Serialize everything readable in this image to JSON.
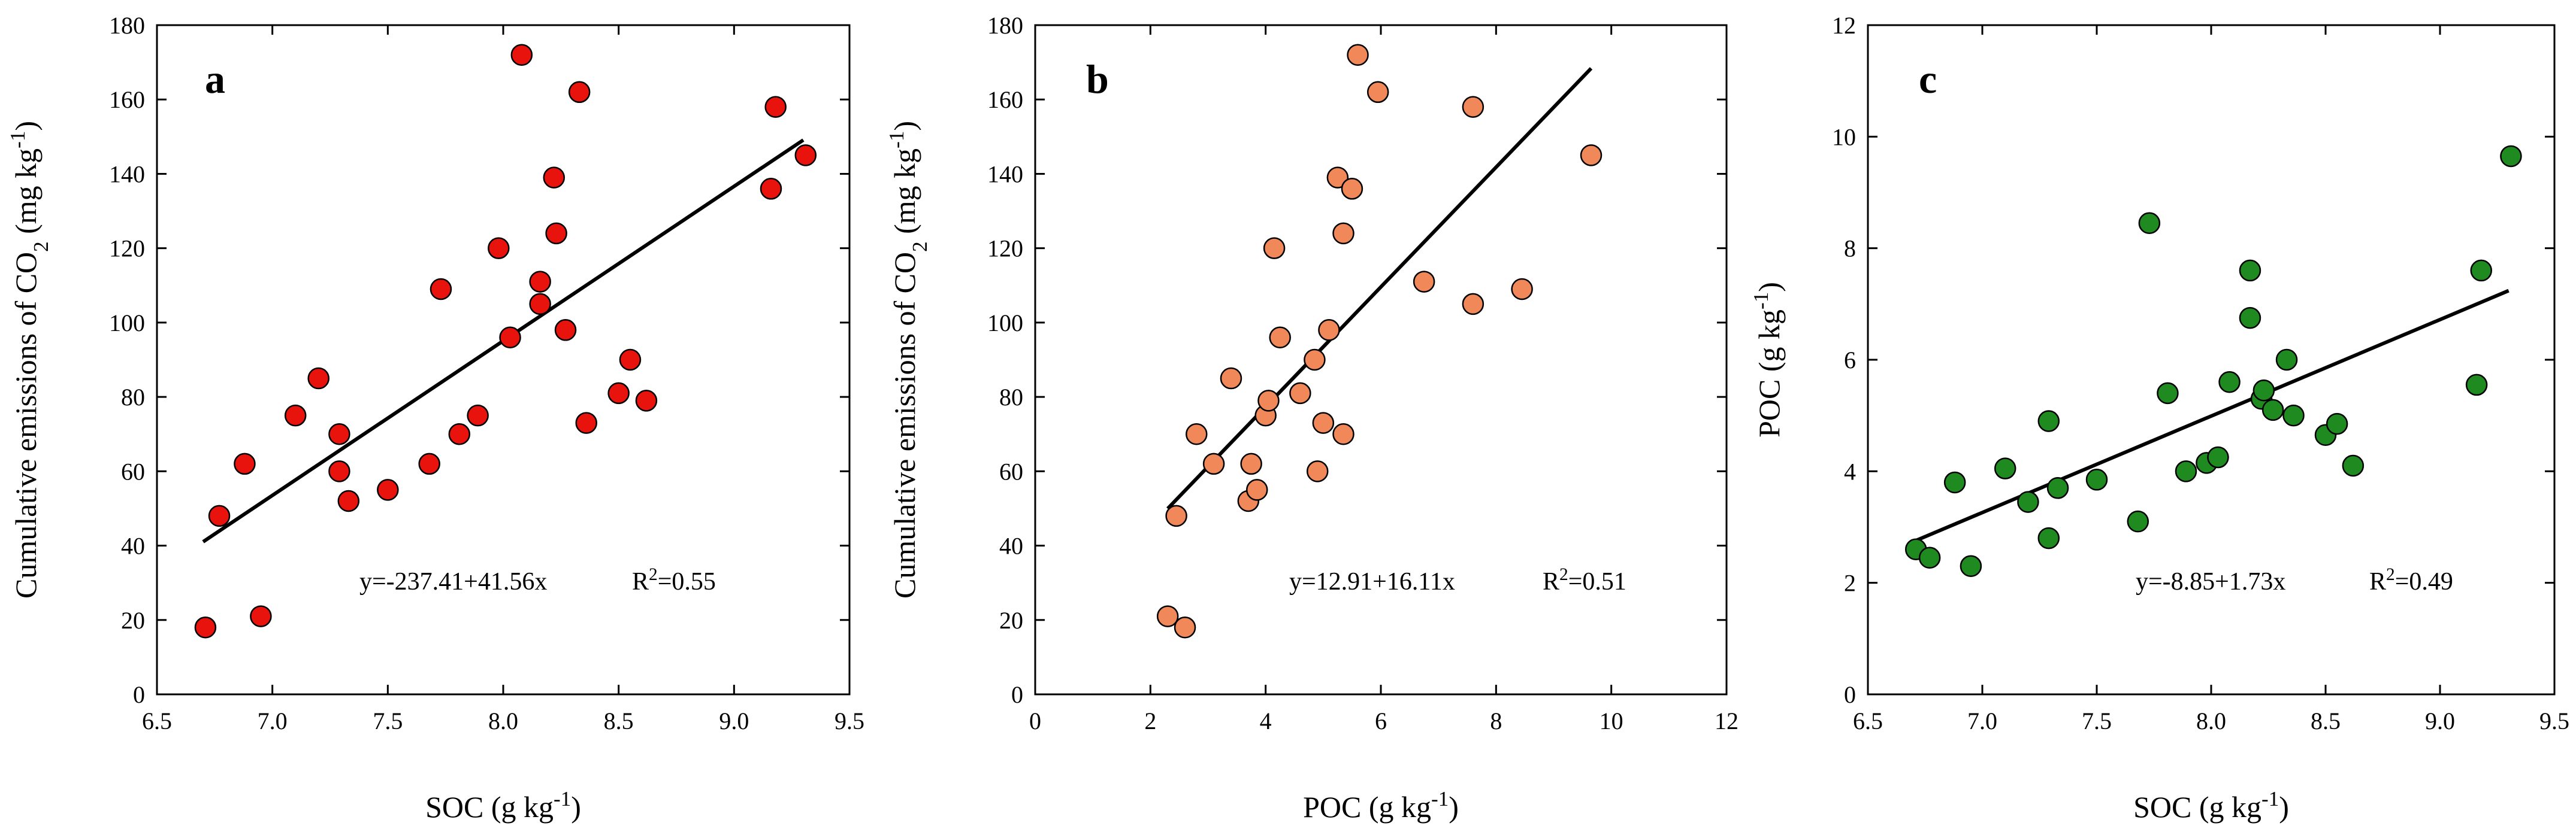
{
  "chart_data": [
    {
      "type": "scatter",
      "panel_label": "a",
      "xlabel": "SOC (g kg⁻¹)",
      "ylabel": "Cumulative emissions of CO₂ (mg kg⁻¹)",
      "xlim": [
        6.5,
        9.5
      ],
      "ylim": [
        0,
        180
      ],
      "xticks": [
        "6.5",
        "7.0",
        "7.5",
        "8.0",
        "8.5",
        "9.0",
        "9.5"
      ],
      "yticks": [
        "0",
        "20",
        "40",
        "60",
        "80",
        "100",
        "120",
        "140",
        "160",
        "180"
      ],
      "marker_color": "#e8130c",
      "equation": "y=-237.41+41.56x",
      "r2": "R²=0.55",
      "fit": {
        "intercept": -237.41,
        "slope": 41.56,
        "x_range": [
          6.7,
          9.3
        ]
      },
      "points": [
        {
          "x": 6.71,
          "y": 18
        },
        {
          "x": 6.77,
          "y": 48
        },
        {
          "x": 6.88,
          "y": 62
        },
        {
          "x": 6.95,
          "y": 21
        },
        {
          "x": 7.1,
          "y": 75
        },
        {
          "x": 7.2,
          "y": 85
        },
        {
          "x": 7.29,
          "y": 60
        },
        {
          "x": 7.29,
          "y": 70
        },
        {
          "x": 7.33,
          "y": 52
        },
        {
          "x": 7.5,
          "y": 55
        },
        {
          "x": 7.68,
          "y": 62
        },
        {
          "x": 7.73,
          "y": 109
        },
        {
          "x": 7.81,
          "y": 70
        },
        {
          "x": 7.89,
          "y": 75
        },
        {
          "x": 7.98,
          "y": 120
        },
        {
          "x": 8.03,
          "y": 96
        },
        {
          "x": 8.08,
          "y": 172
        },
        {
          "x": 8.16,
          "y": 111
        },
        {
          "x": 8.16,
          "y": 105
        },
        {
          "x": 8.22,
          "y": 139
        },
        {
          "x": 8.23,
          "y": 124
        },
        {
          "x": 8.27,
          "y": 98
        },
        {
          "x": 8.33,
          "y": 162
        },
        {
          "x": 8.36,
          "y": 73
        },
        {
          "x": 8.5,
          "y": 81
        },
        {
          "x": 8.55,
          "y": 90
        },
        {
          "x": 8.62,
          "y": 79
        },
        {
          "x": 9.16,
          "y": 136
        },
        {
          "x": 9.18,
          "y": 158
        },
        {
          "x": 9.31,
          "y": 145
        }
      ]
    },
    {
      "type": "scatter",
      "panel_label": "b",
      "xlabel": "POC (g kg⁻¹)",
      "ylabel": "Cumulative emissions of CO₂ (mg kg⁻¹)",
      "xlim": [
        0,
        12
      ],
      "ylim": [
        0,
        180
      ],
      "xticks": [
        "0",
        "2",
        "4",
        "6",
        "8",
        "10",
        "12"
      ],
      "yticks": [
        "0",
        "20",
        "40",
        "60",
        "80",
        "100",
        "120",
        "140",
        "160",
        "180"
      ],
      "marker_color": "#f0885a",
      "equation": "y=12.91+16.11x",
      "r2": "R²=0.51",
      "fit": {
        "intercept": 12.91,
        "slope": 16.11,
        "x_range": [
          2.3,
          9.65
        ]
      },
      "points": [
        {
          "x": 2.3,
          "y": 21
        },
        {
          "x": 2.45,
          "y": 48
        },
        {
          "x": 2.6,
          "y": 18
        },
        {
          "x": 2.8,
          "y": 70
        },
        {
          "x": 3.1,
          "y": 62
        },
        {
          "x": 3.4,
          "y": 85
        },
        {
          "x": 3.7,
          "y": 52
        },
        {
          "x": 3.75,
          "y": 62
        },
        {
          "x": 3.85,
          "y": 55
        },
        {
          "x": 4.0,
          "y": 75
        },
        {
          "x": 4.05,
          "y": 79
        },
        {
          "x": 4.15,
          "y": 120
        },
        {
          "x": 4.25,
          "y": 96
        },
        {
          "x": 4.6,
          "y": 81
        },
        {
          "x": 4.85,
          "y": 90
        },
        {
          "x": 4.9,
          "y": 60
        },
        {
          "x": 5.0,
          "y": 73
        },
        {
          "x": 5.1,
          "y": 98
        },
        {
          "x": 5.25,
          "y": 139
        },
        {
          "x": 5.35,
          "y": 70
        },
        {
          "x": 5.35,
          "y": 124
        },
        {
          "x": 5.5,
          "y": 136
        },
        {
          "x": 5.6,
          "y": 172
        },
        {
          "x": 5.95,
          "y": 162
        },
        {
          "x": 6.75,
          "y": 111
        },
        {
          "x": 7.6,
          "y": 105
        },
        {
          "x": 7.6,
          "y": 158
        },
        {
          "x": 8.45,
          "y": 109
        },
        {
          "x": 9.65,
          "y": 145
        }
      ]
    },
    {
      "type": "scatter",
      "panel_label": "c",
      "xlabel": "SOC (g kg⁻¹)",
      "ylabel": "POC (g kg⁻¹)",
      "xlim": [
        6.5,
        9.5
      ],
      "ylim": [
        0,
        12
      ],
      "xticks": [
        "6.5",
        "7.0",
        "7.5",
        "8.0",
        "8.5",
        "9.0",
        "9.5"
      ],
      "yticks": [
        "0",
        "2",
        "4",
        "6",
        "8",
        "10",
        "12"
      ],
      "marker_color": "#1f8a1f",
      "equation": "y=-8.85+1.73x",
      "r2": "R²=0.49",
      "fit": {
        "intercept": -8.85,
        "slope": 1.73,
        "x_range": [
          6.7,
          9.3
        ]
      },
      "points": [
        {
          "x": 6.71,
          "y": 2.6
        },
        {
          "x": 6.77,
          "y": 2.45
        },
        {
          "x": 6.88,
          "y": 3.8
        },
        {
          "x": 6.95,
          "y": 2.3
        },
        {
          "x": 7.1,
          "y": 4.05
        },
        {
          "x": 7.2,
          "y": 3.45
        },
        {
          "x": 7.29,
          "y": 2.8
        },
        {
          "x": 7.29,
          "y": 4.9
        },
        {
          "x": 7.33,
          "y": 3.7
        },
        {
          "x": 7.5,
          "y": 3.85
        },
        {
          "x": 7.68,
          "y": 3.1
        },
        {
          "x": 7.73,
          "y": 8.45
        },
        {
          "x": 7.81,
          "y": 5.4
        },
        {
          "x": 7.89,
          "y": 4.0
        },
        {
          "x": 7.98,
          "y": 4.15
        },
        {
          "x": 8.03,
          "y": 4.25
        },
        {
          "x": 8.08,
          "y": 5.6
        },
        {
          "x": 8.17,
          "y": 7.6
        },
        {
          "x": 8.17,
          "y": 6.75
        },
        {
          "x": 8.22,
          "y": 5.3
        },
        {
          "x": 8.23,
          "y": 5.45
        },
        {
          "x": 8.27,
          "y": 5.1
        },
        {
          "x": 8.33,
          "y": 6.0
        },
        {
          "x": 8.36,
          "y": 5.0
        },
        {
          "x": 8.5,
          "y": 4.65
        },
        {
          "x": 8.55,
          "y": 4.85
        },
        {
          "x": 8.62,
          "y": 4.1
        },
        {
          "x": 9.16,
          "y": 5.55
        },
        {
          "x": 9.18,
          "y": 7.6
        },
        {
          "x": 9.31,
          "y": 9.65
        }
      ]
    }
  ]
}
